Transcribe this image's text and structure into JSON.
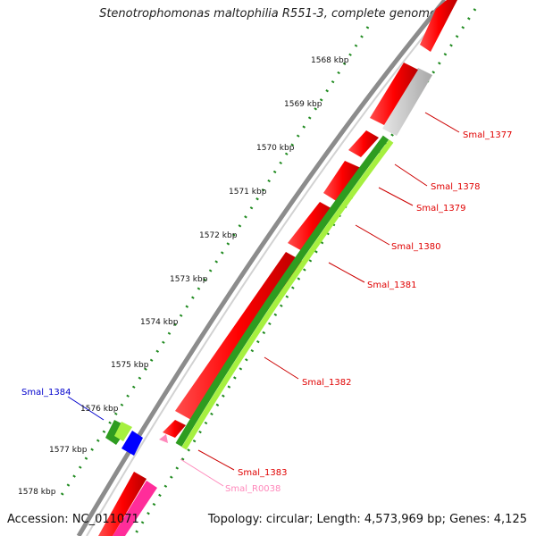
{
  "title": "Stenotrophomonas maltophilia R551-3, complete genome",
  "footer": {
    "accession_text": "Accession: NC_011071",
    "summary_text": "Topology: circular; Length: 4,573,969 bp; Genes: 4,125"
  },
  "ticks": [
    "1568 kbp",
    "1569 kbp",
    "1570 kbp",
    "1571 kbp",
    "1572 kbp",
    "1573 kbp",
    "1574 kbp",
    "1575 kbp",
    "1576 kbp",
    "1577 kbp",
    "1578 kbp"
  ],
  "genes": [
    {
      "label": "Smal_1377",
      "color": "#e00000"
    },
    {
      "label": "Smal_1378",
      "color": "#e00000"
    },
    {
      "label": "Smal_1379",
      "color": "#e00000"
    },
    {
      "label": "Smal_1380",
      "color": "#e00000"
    },
    {
      "label": "Smal_1381",
      "color": "#e00000"
    },
    {
      "label": "Smal_1382",
      "color": "#e00000"
    },
    {
      "label": "Smal_1383",
      "color": "#e00000"
    },
    {
      "label": "Smal_R0038",
      "color": "#ff88bb"
    },
    {
      "label": "Smal_1384",
      "color": "#0000cc"
    }
  ],
  "colors": {
    "cds": "#ff0000",
    "gene_dark": "#2e9c20",
    "gene_light": "#a6f040",
    "pseudo": "#c8c8c8",
    "rna": "#ff2d9a",
    "backbone": "#888888",
    "tick": "#1f8a1f",
    "cog": "#0000ff"
  }
}
